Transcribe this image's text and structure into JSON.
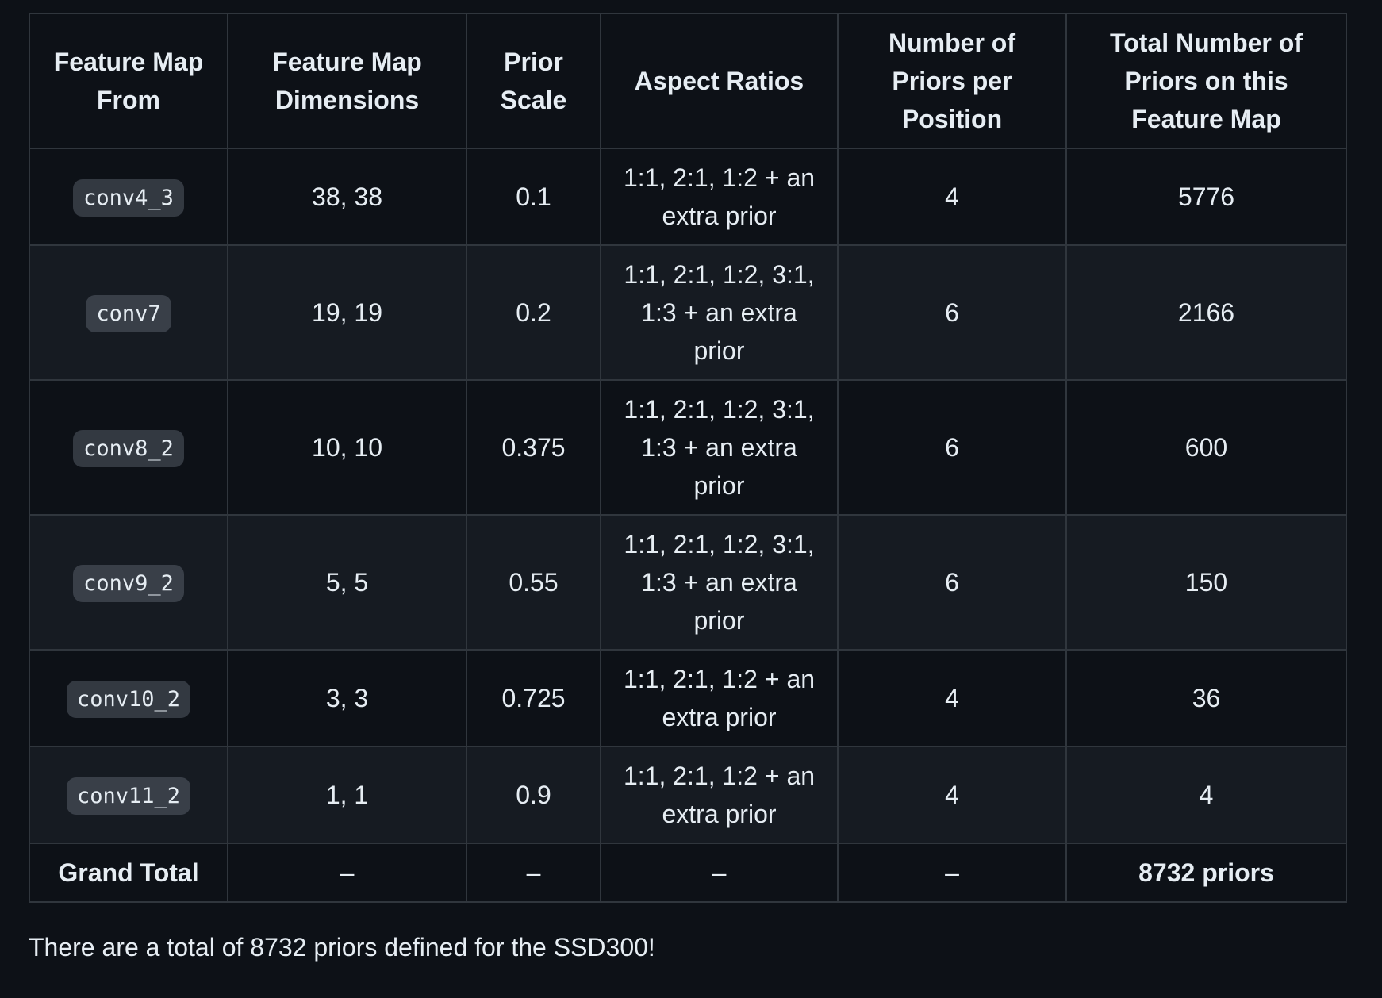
{
  "table": {
    "headers": {
      "feature_map": "Feature Map From",
      "dims": "Feature Map Dimensions",
      "scale": "Prior Scale",
      "aspect_ratios": "Aspect Ratios",
      "priors_per_position": "Number of Priors per Position",
      "total_priors": "Total Number of Priors on this Feature Map"
    },
    "rows": [
      {
        "feature_map": "conv4_3",
        "dims": "38, 38",
        "scale": "0.1",
        "aspect_ratios": "1:1, 2:1, 1:2 + an extra prior",
        "priors_per_position": "4",
        "total_priors": "5776"
      },
      {
        "feature_map": "conv7",
        "dims": "19, 19",
        "scale": "0.2",
        "aspect_ratios": "1:1, 2:1, 1:2, 3:1, 1:3 + an extra prior",
        "priors_per_position": "6",
        "total_priors": "2166"
      },
      {
        "feature_map": "conv8_2",
        "dims": "10, 10",
        "scale": "0.375",
        "aspect_ratios": "1:1, 2:1, 1:2, 3:1, 1:3 + an extra prior",
        "priors_per_position": "6",
        "total_priors": "600"
      },
      {
        "feature_map": "conv9_2",
        "dims": "5, 5",
        "scale": "0.55",
        "aspect_ratios": "1:1, 2:1, 1:2, 3:1, 1:3 + an extra prior",
        "priors_per_position": "6",
        "total_priors": "150"
      },
      {
        "feature_map": "conv10_2",
        "dims": "3, 3",
        "scale": "0.725",
        "aspect_ratios": "1:1, 2:1, 1:2 + an extra prior",
        "priors_per_position": "4",
        "total_priors": "36"
      },
      {
        "feature_map": "conv11_2",
        "dims": "1, 1",
        "scale": "0.9",
        "aspect_ratios": "1:1, 2:1, 1:2 + an extra prior",
        "priors_per_position": "4",
        "total_priors": "4"
      }
    ],
    "grand_total": {
      "label": "Grand Total",
      "dims": "–",
      "scale": "–",
      "aspect_ratios": "–",
      "priors_per_position": "–",
      "total_priors": "8732 priors"
    }
  },
  "caption": "There are a total of 8732 priors defined for the SSD300!",
  "colors": {
    "background": "#0d1117",
    "row_stripe": "#161b22",
    "border": "#30363d",
    "text": "#e6edf3",
    "code_chip_bg": "rgba(110,118,129,0.4)"
  }
}
